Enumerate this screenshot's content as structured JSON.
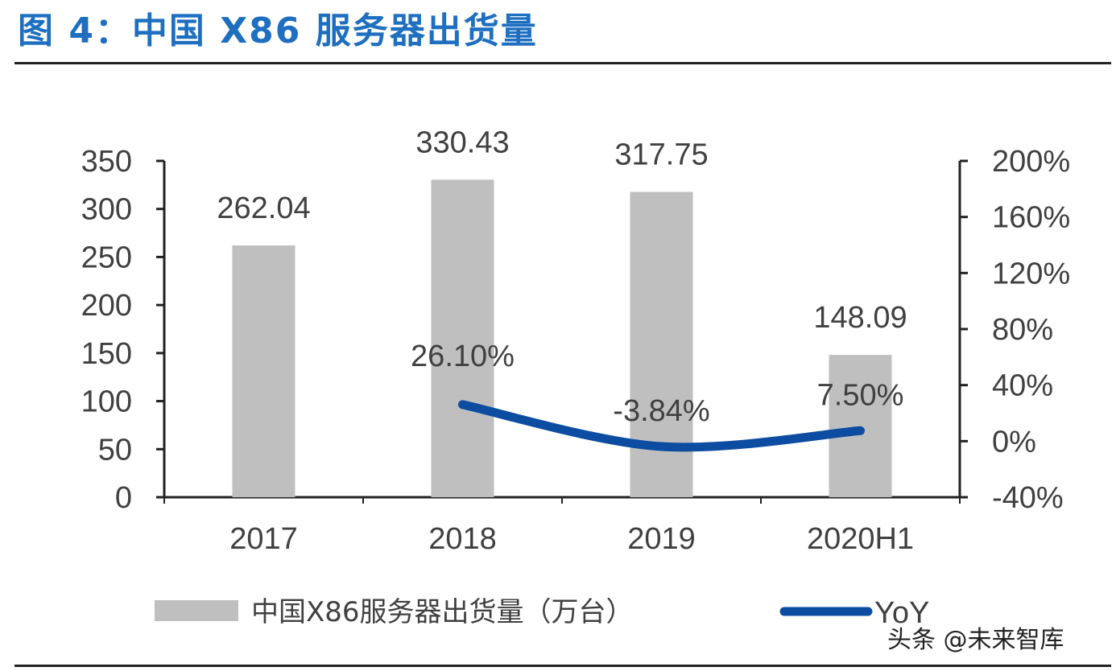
{
  "figure_title": "图 4：中国 X86 服务器出货量",
  "watermark": "头条 @未来智库",
  "colors": {
    "bar": "#bfbfbf",
    "line": "#0d4da1",
    "title": "#1f6fc0",
    "text": "#404040"
  },
  "chart_data": {
    "type": "bar",
    "categories": [
      "2017",
      "2018",
      "2019",
      "2020H1"
    ],
    "series": [
      {
        "name": "中国X86服务器出货量（万台）",
        "type": "bar",
        "axis": "left",
        "values": [
          262.04,
          330.43,
          317.75,
          148.09
        ],
        "labels": [
          "262.04",
          "330.43",
          "317.75",
          "148.09"
        ]
      },
      {
        "name": "YoY",
        "type": "line",
        "axis": "right",
        "values": [
          null,
          26.1,
          -3.84,
          7.5
        ],
        "labels": [
          "",
          "26.10%",
          "-3.84%",
          "7.50%"
        ]
      }
    ],
    "y_left": {
      "min": 0,
      "max": 350,
      "ticks": [
        "0",
        "50",
        "100",
        "150",
        "200",
        "250",
        "300",
        "350"
      ]
    },
    "y_right": {
      "min": -40,
      "max": 200,
      "ticks": [
        "-40%",
        "0%",
        "40%",
        "80%",
        "120%",
        "160%",
        "200%"
      ]
    },
    "legend_position": "bottom",
    "grid": false
  }
}
